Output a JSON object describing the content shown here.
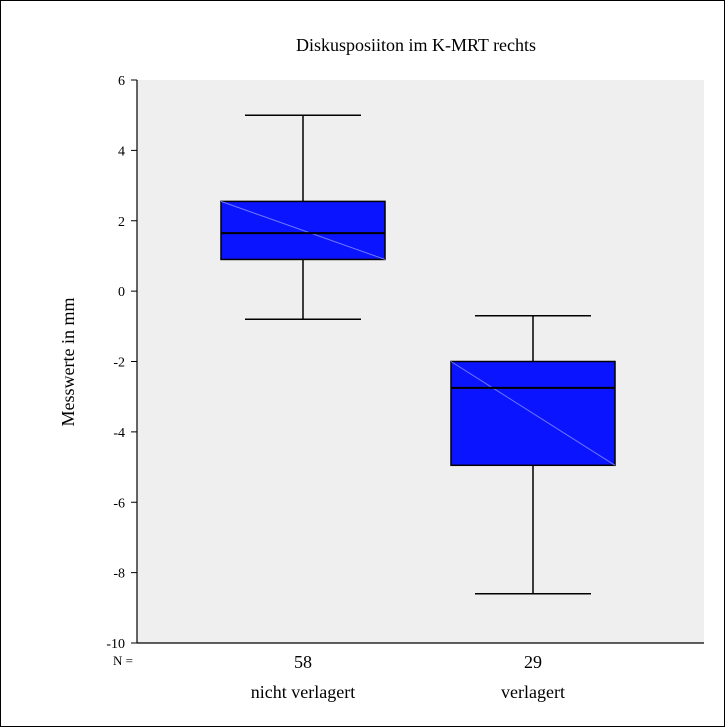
{
  "chart_data": {
    "type": "boxplot",
    "title": "Diskusposiiton im K-MRT rechts",
    "ylabel": "Messwerte in mm",
    "xlabel": "",
    "ylim": [
      -10,
      6
    ],
    "yticks": [
      6,
      4,
      2,
      0,
      -2,
      -4,
      -6,
      -8,
      -10
    ],
    "n_prefix": "N =",
    "grid": false,
    "colors": {
      "plot_background": "#efefef",
      "box_fill": "#0a14ff",
      "box_diagonal": "#6e78ff",
      "line": "#000000",
      "frame": "#000000"
    },
    "boxes": [
      {
        "category": "nicht verlagert",
        "n": "58",
        "whisker_low": -0.8,
        "q1": 0.9,
        "median": 1.65,
        "q3": 2.55,
        "whisker_high": 5.0
      },
      {
        "category": "verlagert",
        "n": "29",
        "whisker_low": -8.6,
        "q1": -4.95,
        "median": -2.75,
        "q3": -2.0,
        "whisker_high": -0.7
      }
    ]
  }
}
